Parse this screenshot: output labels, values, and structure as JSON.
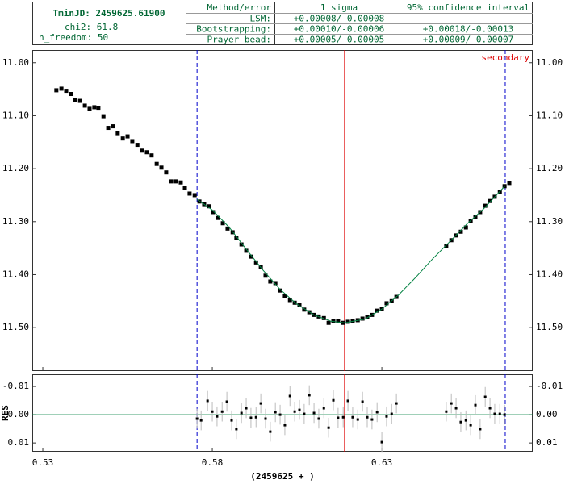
{
  "header": {
    "tmin": "TminJD: 2459625.61900",
    "chi2": "chi2: 61.8",
    "n_freedom": "n_freedom: 50",
    "table": {
      "columns": [
        "Method/error",
        "1 sigma",
        "95% confidence interval"
      ],
      "rows": [
        [
          "LSM:",
          "+0.00008/-0.00008",
          "-"
        ],
        [
          "Bootstrapping:",
          "+0.00010/-0.00006",
          "+0.00018/-0.00013"
        ],
        [
          "Prayer bead:",
          "+0.00005/-0.00005",
          "+0.00009/-0.00007"
        ]
      ]
    }
  },
  "chart_data": [
    {
      "type": "scatter",
      "xlim": [
        0.5269,
        0.6745
      ],
      "ylim": [
        11.582,
        10.976
      ],
      "yticks": [
        {
          "value": 11.0,
          "label": "11.00"
        },
        {
          "value": 11.1,
          "label": "11.10"
        },
        {
          "value": 11.2,
          "label": "11.20"
        },
        {
          "value": 11.3,
          "label": "11.30"
        },
        {
          "value": 11.4,
          "label": "11.40"
        },
        {
          "value": 11.5,
          "label": "11.50"
        }
      ],
      "vlines": [
        {
          "x": 0.5755,
          "color": "#0000cc",
          "dashed": true
        },
        {
          "x": 0.619,
          "color": "#dd0000",
          "dashed": false
        },
        {
          "x": 0.6664,
          "color": "#0000cc",
          "dashed": true
        }
      ],
      "annotation": {
        "text": "secondary",
        "color": "#dd0000"
      },
      "series": [
        {
          "style": "points",
          "color": "#000000",
          "x": [
            0.534,
            0.5355,
            0.5369,
            0.5383,
            0.5395,
            0.541,
            0.5424,
            0.5438,
            0.5452,
            0.5464,
            0.5479,
            0.5493,
            0.5507,
            0.5521,
            0.5536,
            0.555,
            0.5564,
            0.5579,
            0.5593,
            0.5607,
            0.5621,
            0.5636,
            0.565,
            0.5664,
            0.5679,
            0.5693,
            0.5707,
            0.5719,
            0.5733,
            0.5748,
            0.5762,
            0.5776,
            0.579,
            0.5802,
            0.5817,
            0.5831,
            0.5845,
            0.586,
            0.5871,
            0.5886,
            0.59,
            0.5914,
            0.5929,
            0.5943,
            0.5957,
            0.5971,
            0.5986,
            0.6,
            0.6014,
            0.6029,
            0.6043,
            0.6057,
            0.6071,
            0.6086,
            0.61,
            0.6114,
            0.6129,
            0.6143,
            0.6157,
            0.6171,
            0.6186,
            0.62,
            0.6214,
            0.6229,
            0.6243,
            0.6257,
            0.6271,
            0.6286,
            0.63,
            0.6314,
            0.6329,
            0.6343,
            0.649,
            0.6505,
            0.6519,
            0.6533,
            0.6548,
            0.6562,
            0.6576,
            0.659,
            0.6605,
            0.6619,
            0.6633,
            0.6648,
            0.6662,
            0.6676
          ],
          "values": [
            11.052,
            11.049,
            11.053,
            11.059,
            11.07,
            11.072,
            11.081,
            11.087,
            11.084,
            11.085,
            11.101,
            11.123,
            11.12,
            11.133,
            11.143,
            11.139,
            11.148,
            11.155,
            11.166,
            11.169,
            11.175,
            11.191,
            11.198,
            11.207,
            11.224,
            11.224,
            11.226,
            11.236,
            11.247,
            11.25,
            11.262,
            11.267,
            11.271,
            11.282,
            11.293,
            11.303,
            11.313,
            11.32,
            11.331,
            11.343,
            11.355,
            11.366,
            11.377,
            11.386,
            11.402,
            11.413,
            11.416,
            11.43,
            11.441,
            11.448,
            11.453,
            11.457,
            11.466,
            11.471,
            11.476,
            11.479,
            11.482,
            11.491,
            11.488,
            11.488,
            11.491,
            11.489,
            11.488,
            11.486,
            11.483,
            11.48,
            11.476,
            11.468,
            11.465,
            11.454,
            11.45,
            11.442,
            11.346,
            11.335,
            11.326,
            11.319,
            11.311,
            11.299,
            11.291,
            11.282,
            11.27,
            11.261,
            11.253,
            11.244,
            11.233,
            11.227
          ]
        },
        {
          "style": "line",
          "color": "#008040",
          "x": [
            0.5755,
            0.58,
            0.585,
            0.59,
            0.595,
            0.6,
            0.605,
            0.61,
            0.615,
            0.619,
            0.625,
            0.63,
            0.635,
            0.64,
            0.645,
            0.65,
            0.655,
            0.66,
            0.6664
          ],
          "values": [
            11.258,
            11.278,
            11.311,
            11.352,
            11.392,
            11.428,
            11.456,
            11.476,
            11.488,
            11.491,
            11.484,
            11.465,
            11.438,
            11.405,
            11.37,
            11.338,
            11.305,
            11.276,
            11.232
          ]
        }
      ]
    },
    {
      "type": "residuals",
      "ylabel": "RES",
      "xlabel": "(2459625 + )",
      "xlim": [
        0.5269,
        0.6745
      ],
      "ylim": [
        0.0131,
        -0.0143
      ],
      "xticks": [
        0.53,
        0.58,
        0.63
      ],
      "yticks": [
        -0.01,
        {
          "value": 0,
          "label": "0.00"
        },
        0.01
      ],
      "zero_color": "#008040",
      "error_color": "#bbbbbb",
      "series": [
        {
          "color": "#000000",
          "x": [
            0.5755,
            0.5767,
            0.5786,
            0.58,
            0.5814,
            0.5829,
            0.5843,
            0.5857,
            0.5871,
            0.5886,
            0.59,
            0.5914,
            0.5929,
            0.5943,
            0.5957,
            0.5971,
            0.5986,
            0.6,
            0.6014,
            0.6029,
            0.6043,
            0.6057,
            0.6071,
            0.6086,
            0.61,
            0.6114,
            0.6129,
            0.6143,
            0.6157,
            0.6171,
            0.6186,
            0.62,
            0.6214,
            0.6229,
            0.6243,
            0.6257,
            0.6271,
            0.6286,
            0.63,
            0.6314,
            0.6329,
            0.6343,
            0.649,
            0.6505,
            0.6519,
            0.6533,
            0.6548,
            0.6562,
            0.6576,
            0.659,
            0.6605,
            0.6619,
            0.6633,
            0.6648,
            0.6662
          ],
          "values": [
            0.0014,
            0.002,
            -0.0049,
            -0.0011,
            0.0006,
            -0.0011,
            -0.0046,
            0.002,
            0.0051,
            -0.0006,
            -0.0023,
            0.0011,
            0.0009,
            -0.004,
            0.0014,
            0.006,
            -0.0009,
            0.0,
            0.0037,
            -0.0066,
            -0.0011,
            -0.0017,
            -0.0003,
            -0.0069,
            -0.0006,
            0.0014,
            -0.0023,
            0.0046,
            -0.0051,
            0.0011,
            0.0009,
            -0.0049,
            0.0009,
            0.0017,
            -0.0046,
            0.0009,
            0.0017,
            -0.0009,
            0.0097,
            0.0006,
            -0.0003,
            -0.004,
            -0.0011,
            -0.004,
            -0.0023,
            0.0026,
            0.002,
            0.0037,
            -0.0034,
            0.0051,
            -0.0063,
            -0.0023,
            -0.0003,
            -0.0003,
            0.0
          ],
          "errors": [
            0.0035,
            0.0035,
            0.0035,
            0.0035,
            0.0035,
            0.0035,
            0.0035,
            0.0035,
            0.0035,
            0.0035,
            0.0035,
            0.0035,
            0.0035,
            0.0035,
            0.0035,
            0.0035,
            0.0035,
            0.0035,
            0.0035,
            0.0035,
            0.0035,
            0.0035,
            0.0035,
            0.0035,
            0.0035,
            0.0035,
            0.0035,
            0.0035,
            0.0035,
            0.0035,
            0.0035,
            0.0035,
            0.0035,
            0.0035,
            0.0035,
            0.0035,
            0.0035,
            0.0035,
            0.0035,
            0.0035,
            0.0035,
            0.0035,
            0.0035,
            0.0035,
            0.0035,
            0.0035,
            0.0035,
            0.0035,
            0.0035,
            0.0035,
            0.0035,
            0.0035,
            0.0035,
            0.0035,
            0.0035
          ]
        }
      ]
    }
  ]
}
